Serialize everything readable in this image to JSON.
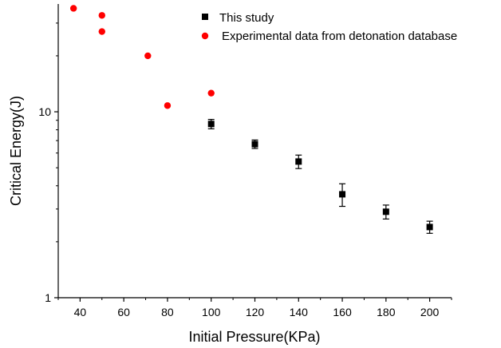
{
  "chart_data": {
    "type": "scatter",
    "title": "",
    "xlabel": "Initial Pressure(KPa)",
    "ylabel": "Critical Energy(J)",
    "xlim": [
      30,
      210
    ],
    "ylim": [
      1,
      38
    ],
    "yscale": "log",
    "x_ticks": [
      40,
      60,
      80,
      100,
      120,
      140,
      160,
      180,
      200
    ],
    "y_ticks": [
      1,
      10
    ],
    "grid": false,
    "legend_position": "top-right",
    "series": [
      {
        "name": "This study",
        "marker": "square",
        "color": "#000000",
        "x": [
          100,
          120,
          140,
          160,
          180,
          200
        ],
        "y": [
          8.6,
          6.7,
          5.4,
          3.6,
          2.9,
          2.4
        ],
        "y_err": [
          0.5,
          0.35,
          0.45,
          0.5,
          0.25,
          0.18
        ]
      },
      {
        "name": "Experimental data from detonation database",
        "marker": "circle",
        "color": "#ff0000",
        "x": [
          37,
          50,
          50,
          71,
          80,
          100
        ],
        "y": [
          36,
          33,
          27,
          20,
          10.8,
          12.6
        ],
        "y_err": []
      }
    ]
  }
}
